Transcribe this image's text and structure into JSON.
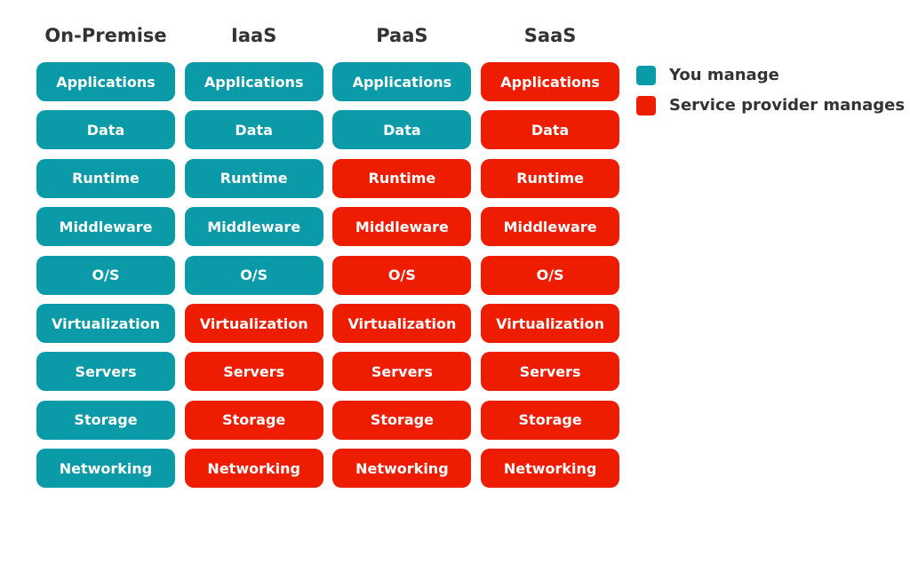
{
  "legend": [
    {
      "label": "You manage",
      "color": "#0a9aa8"
    },
    {
      "label": "Service provider manages",
      "color": "#ee1c00"
    }
  ],
  "columns": [
    {
      "title": "On-Premise",
      "cells": [
        {
          "label": "Applications",
          "legend": 0
        },
        {
          "label": "Data",
          "legend": 0
        },
        {
          "label": "Runtime",
          "legend": 0
        },
        {
          "label": "Middleware",
          "legend": 0
        },
        {
          "label": "O/S",
          "legend": 0
        },
        {
          "label": "Virtualization",
          "legend": 0
        },
        {
          "label": "Servers",
          "legend": 0
        },
        {
          "label": "Storage",
          "legend": 0
        },
        {
          "label": "Networking",
          "legend": 0
        }
      ]
    },
    {
      "title": "IaaS",
      "cells": [
        {
          "label": "Applications",
          "legend": 0
        },
        {
          "label": "Data",
          "legend": 0
        },
        {
          "label": "Runtime",
          "legend": 0
        },
        {
          "label": "Middleware",
          "legend": 0
        },
        {
          "label": "O/S",
          "legend": 0
        },
        {
          "label": "Virtualization",
          "legend": 1
        },
        {
          "label": "Servers",
          "legend": 1
        },
        {
          "label": "Storage",
          "legend": 1
        },
        {
          "label": "Networking",
          "legend": 1
        }
      ]
    },
    {
      "title": "PaaS",
      "cells": [
        {
          "label": "Applications",
          "legend": 0
        },
        {
          "label": "Data",
          "legend": 0
        },
        {
          "label": "Runtime",
          "legend": 1
        },
        {
          "label": "Middleware",
          "legend": 1
        },
        {
          "label": "O/S",
          "legend": 1
        },
        {
          "label": "Virtualization",
          "legend": 1
        },
        {
          "label": "Servers",
          "legend": 1
        },
        {
          "label": "Storage",
          "legend": 1
        },
        {
          "label": "Networking",
          "legend": 1
        }
      ]
    },
    {
      "title": "SaaS",
      "cells": [
        {
          "label": "Applications",
          "legend": 1
        },
        {
          "label": "Data",
          "legend": 1
        },
        {
          "label": "Runtime",
          "legend": 1
        },
        {
          "label": "Middleware",
          "legend": 1
        },
        {
          "label": "O/S",
          "legend": 1
        },
        {
          "label": "Virtualization",
          "legend": 1
        },
        {
          "label": "Servers",
          "legend": 1
        },
        {
          "label": "Storage",
          "legend": 1
        },
        {
          "label": "Networking",
          "legend": 1
        }
      ]
    }
  ]
}
